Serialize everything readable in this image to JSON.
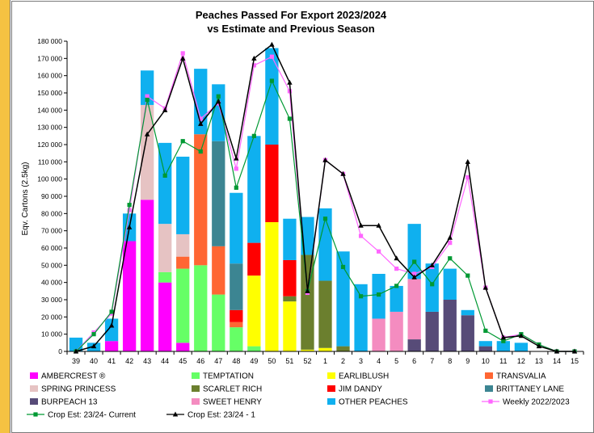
{
  "chart_data": {
    "type": "bar",
    "title": "Peaches Passed For Export 2023/2024",
    "subtitle": "vs Estimate and Previous Season",
    "ylabel": "Eqv. Cartons (2.5kg)",
    "xlabel": "",
    "ylim": [
      0,
      180000
    ],
    "ytick_step": 10000,
    "ytick_labels": [
      "0",
      "10 000",
      "20 000",
      "30 000",
      "40 000",
      "50 000",
      "60 000",
      "70 000",
      "80 000",
      "90 000",
      "100 000",
      "110 000",
      "120 000",
      "130 000",
      "140 000",
      "150 000",
      "160 000",
      "170 000",
      "180 000"
    ],
    "grid": false,
    "legend_placement": "bottom",
    "categories": [
      "39",
      "40",
      "41",
      "42",
      "43",
      "44",
      "45",
      "46",
      "47",
      "48",
      "49",
      "50",
      "51",
      "52",
      "1",
      "2",
      "3",
      "4",
      "5",
      "6",
      "7",
      "8",
      "9",
      "10",
      "11",
      "12",
      "13",
      "14",
      "15"
    ],
    "series": [
      {
        "name": "AMBERCREST ®",
        "color": "#ff00ff",
        "values": [
          0,
          0,
          6000,
          64000,
          88000,
          40000,
          5000,
          0,
          0,
          0,
          0,
          0,
          0,
          0,
          0,
          0,
          0,
          0,
          0,
          0,
          0,
          0,
          0,
          0,
          0,
          0,
          0,
          0,
          0
        ]
      },
      {
        "name": "TEMPTATION",
        "color": "#66ff66",
        "values": [
          0,
          0,
          0,
          0,
          0,
          6000,
          43000,
          50000,
          33000,
          14000,
          3000,
          0,
          0,
          0,
          0,
          0,
          0,
          0,
          0,
          0,
          0,
          0,
          0,
          0,
          0,
          0,
          0,
          0,
          0
        ]
      },
      {
        "name": "EARLIBLUSH",
        "color": "#ffff00",
        "values": [
          0,
          0,
          0,
          0,
          0,
          0,
          0,
          0,
          0,
          0,
          41000,
          75000,
          29000,
          1000,
          2000,
          0,
          0,
          0,
          0,
          0,
          0,
          0,
          0,
          0,
          0,
          0,
          0,
          0,
          0
        ]
      },
      {
        "name": "TRANSVALIA",
        "color": "#ff6633",
        "values": [
          0,
          0,
          0,
          0,
          0,
          0,
          7000,
          76000,
          28000,
          3000,
          0,
          0,
          0,
          0,
          0,
          0,
          0,
          0,
          0,
          0,
          0,
          0,
          0,
          0,
          0,
          0,
          0,
          0,
          0
        ]
      },
      {
        "name": "SPRING PRINCESS",
        "color": "#e6c3c3",
        "values": [
          0,
          0,
          0,
          0,
          55000,
          28000,
          13000,
          0,
          0,
          0,
          0,
          0,
          0,
          0,
          0,
          0,
          0,
          0,
          0,
          0,
          0,
          0,
          0,
          0,
          0,
          0,
          0,
          0,
          0
        ]
      },
      {
        "name": "SCARLET RICH",
        "color": "#6b7f2e",
        "values": [
          0,
          0,
          0,
          0,
          0,
          0,
          0,
          0,
          0,
          0,
          0,
          0,
          3000,
          55000,
          39000,
          3000,
          0,
          0,
          0,
          0,
          0,
          0,
          0,
          0,
          0,
          0,
          0,
          0,
          0
        ]
      },
      {
        "name": "JIM DANDY",
        "color": "#ff0000",
        "values": [
          0,
          0,
          0,
          0,
          0,
          0,
          0,
          0,
          0,
          7000,
          19000,
          45000,
          21000,
          0,
          0,
          0,
          0,
          0,
          0,
          0,
          0,
          0,
          0,
          0,
          0,
          0,
          0,
          0,
          0
        ]
      },
      {
        "name": "BRITTANEY LANE",
        "color": "#3c8592",
        "values": [
          0,
          0,
          0,
          0,
          0,
          0,
          0,
          0,
          61000,
          27000,
          0,
          0,
          0,
          0,
          0,
          0,
          0,
          0,
          0,
          0,
          0,
          0,
          0,
          0,
          0,
          0,
          0,
          0,
          0
        ]
      },
      {
        "name": "BURPEACH 13",
        "color": "#574b78",
        "values": [
          0,
          0,
          0,
          0,
          0,
          0,
          0,
          0,
          0,
          0,
          0,
          0,
          0,
          0,
          0,
          0,
          0,
          0,
          0,
          7000,
          23000,
          30000,
          21000,
          3000,
          0,
          0,
          0,
          0,
          0
        ]
      },
      {
        "name": "SWEET HENRY",
        "color": "#f48cc0",
        "values": [
          0,
          0,
          0,
          0,
          0,
          0,
          0,
          0,
          0,
          0,
          0,
          0,
          0,
          0,
          0,
          0,
          0,
          19000,
          23000,
          35000,
          0,
          0,
          0,
          0,
          0,
          0,
          0,
          0,
          0
        ]
      },
      {
        "name": "OTHER PEACHES",
        "color": "#0fb0ef",
        "values": [
          8000,
          5000,
          13000,
          16000,
          20000,
          47000,
          45000,
          38000,
          33000,
          41000,
          62000,
          56000,
          24000,
          22000,
          42000,
          55000,
          39000,
          26000,
          15000,
          32000,
          28000,
          18000,
          3000,
          3000,
          6000,
          5000,
          0,
          0,
          0
        ]
      }
    ],
    "lines": [
      {
        "name": "Weekly 2022/2023",
        "color": "#ff66ff",
        "marker": "square",
        "values": [
          0,
          11000,
          22000,
          82000,
          148000,
          141000,
          173000,
          135000,
          144000,
          106000,
          166000,
          171000,
          151000,
          34000,
          111000,
          103000,
          67000,
          58000,
          48000,
          45000,
          49000,
          63000,
          101000,
          37000,
          8000,
          10000,
          4000,
          0,
          0
        ]
      },
      {
        "name": "Crop Est: 23/24- Current",
        "color": "#009933",
        "marker": "square",
        "values": [
          0,
          10000,
          23000,
          85000,
          146000,
          102000,
          122000,
          116000,
          148000,
          95000,
          125000,
          157000,
          135000,
          35000,
          77000,
          49000,
          32000,
          33000,
          38000,
          52000,
          39000,
          54000,
          44000,
          12000,
          6000,
          10000,
          4000,
          0,
          0
        ]
      },
      {
        "name": "Crop Est: 23/24 - 1",
        "color": "#000000",
        "marker": "triangle",
        "values": [
          0,
          3000,
          15000,
          72000,
          126000,
          140000,
          170000,
          132000,
          145000,
          112000,
          170000,
          178000,
          156000,
          35000,
          111000,
          103000,
          73000,
          73000,
          54000,
          43000,
          50000,
          66000,
          110000,
          37000,
          8000,
          9000,
          3000,
          0,
          0
        ]
      }
    ]
  }
}
